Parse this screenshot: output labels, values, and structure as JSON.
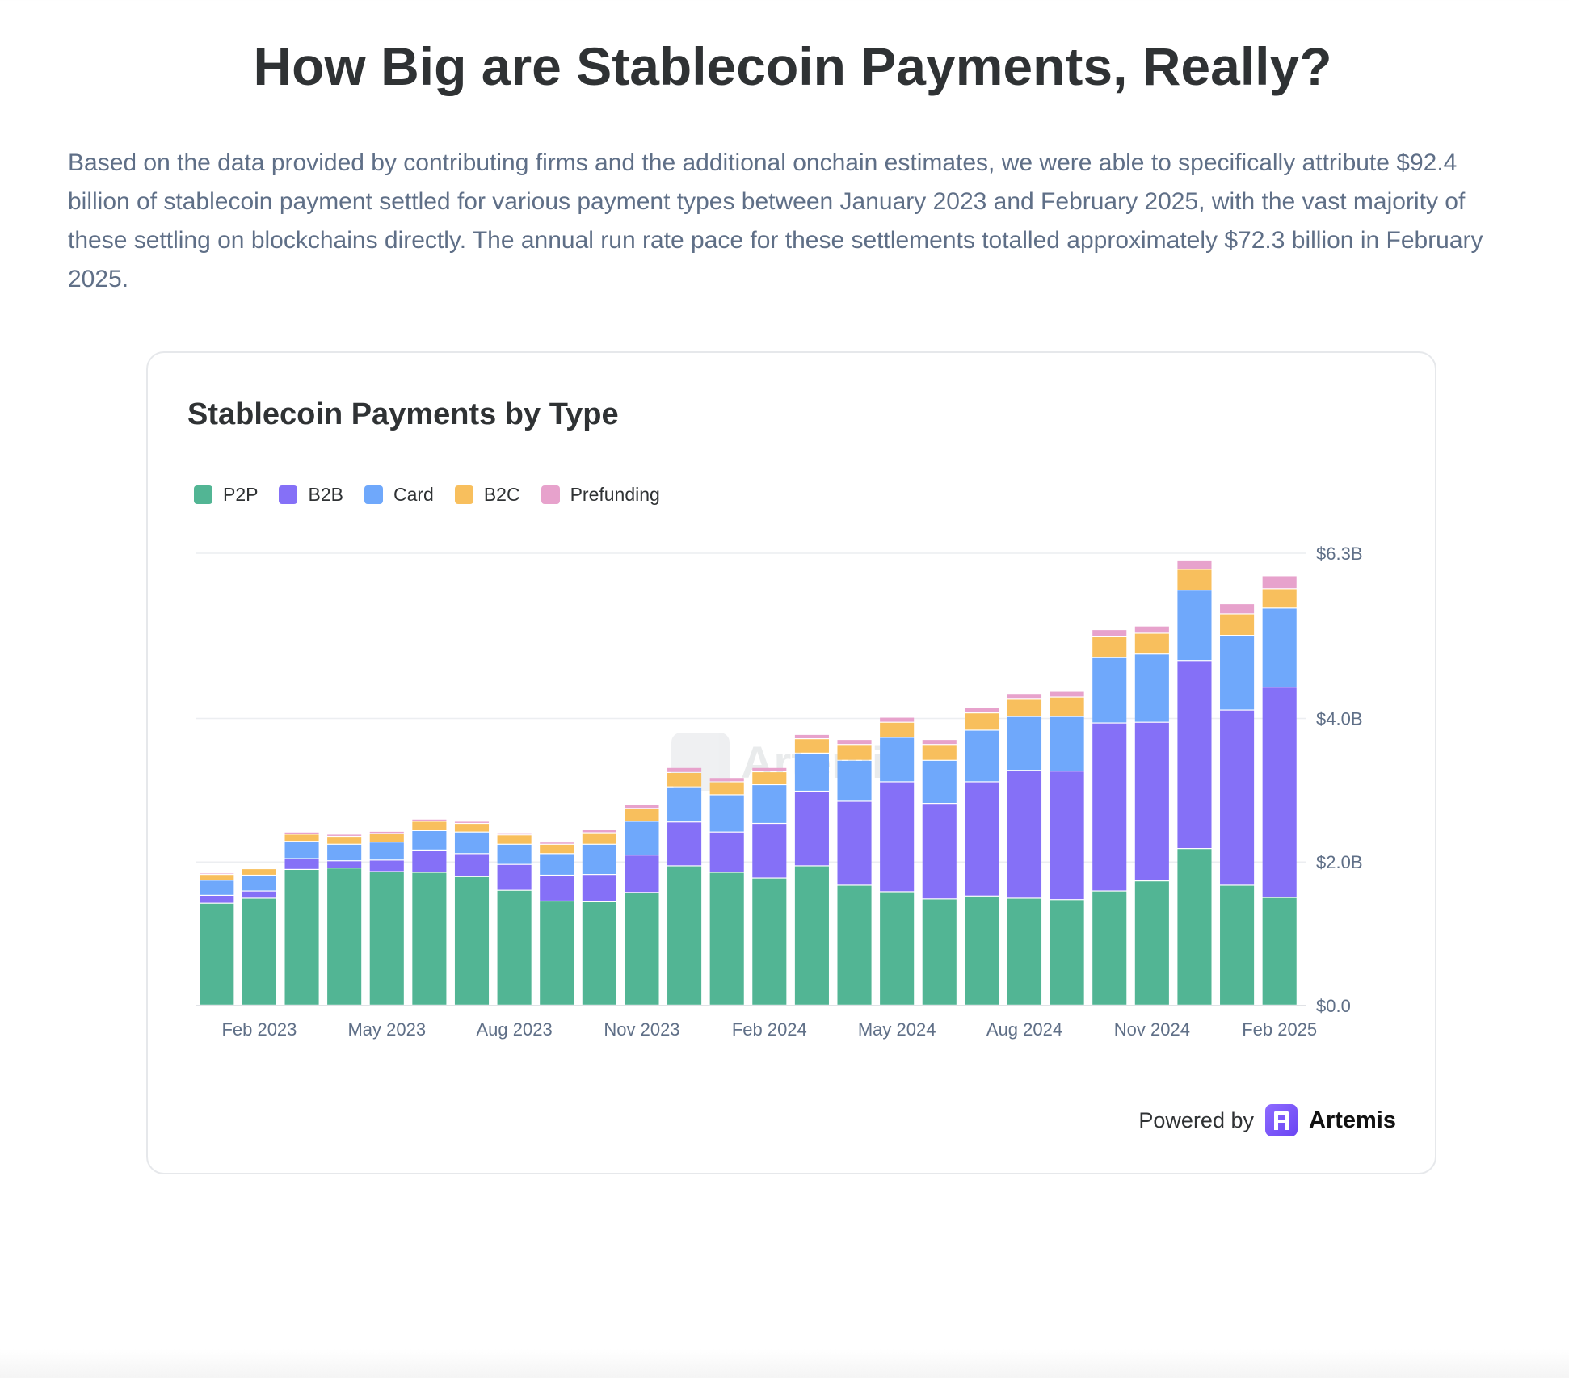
{
  "page": {
    "title": "How Big are Stablecoin Payments, Really?",
    "intro": "Based on the data provided by contributing firms and the additional onchain estimates, we were able to specifically attribute $92.4 billion of stablecoin payment settled for various payment types between January 2023 and February 2025, with the vast majority of these settling on blockchains directly. The annual run rate pace for these settlements totalled approximately $72.3 billion in February 2025."
  },
  "card": {
    "watermark": "Artemis",
    "powered_by": "Powered by",
    "brand": "Artemis"
  },
  "chart_data": {
    "type": "bar",
    "stacked": true,
    "title": "Stablecoin Payments by Type",
    "legend_position": "top-left",
    "grid": true,
    "yaxis_position": "right",
    "ylim": [
      0,
      6.3
    ],
    "y_ticks": [
      0,
      2.0,
      4.0,
      6.3
    ],
    "y_tick_labels": [
      "$0.0",
      "$2.0B",
      "$4.0B",
      "$6.3B"
    ],
    "x_tick_labels": [
      "Feb 2023",
      "May 2023",
      "Aug 2023",
      "Nov 2023",
      "Feb 2024",
      "May 2024",
      "Aug 2024",
      "Nov 2024",
      "Feb 2025"
    ],
    "x_tick_indices": [
      1,
      4,
      7,
      10,
      13,
      16,
      19,
      22,
      25
    ],
    "categories": [
      "Jan 2023",
      "Feb 2023",
      "Mar 2023",
      "Apr 2023",
      "May 2023",
      "Jun 2023",
      "Jul 2023",
      "Aug 2023",
      "Sep 2023",
      "Oct 2023",
      "Nov 2023",
      "Dec 2023",
      "Jan 2024",
      "Feb 2024",
      "Mar 2024",
      "Apr 2024",
      "May 2024",
      "Jun 2024",
      "Jul 2024",
      "Aug 2024",
      "Sep 2024",
      "Oct 2024",
      "Nov 2024",
      "Dec 2024",
      "Jan 2025",
      "Feb 2025"
    ],
    "series": [
      {
        "name": "P2P",
        "color": "#52b594",
        "values": [
          1.42,
          1.49,
          1.89,
          1.91,
          1.86,
          1.85,
          1.79,
          1.6,
          1.45,
          1.44,
          1.57,
          1.94,
          1.85,
          1.77,
          1.94,
          1.67,
          1.58,
          1.48,
          1.52,
          1.49,
          1.47,
          1.59,
          1.73,
          2.18,
          1.67,
          1.5
        ]
      },
      {
        "name": "B2B",
        "color": "#8570f7",
        "values": [
          0.11,
          0.1,
          0.15,
          0.1,
          0.16,
          0.31,
          0.32,
          0.36,
          0.36,
          0.38,
          0.52,
          0.61,
          0.56,
          0.76,
          1.04,
          1.17,
          1.53,
          1.33,
          1.59,
          1.78,
          1.79,
          2.34,
          2.21,
          2.62,
          2.44,
          2.93
        ]
      },
      {
        "name": "Card",
        "color": "#6fa8fb",
        "values": [
          0.21,
          0.22,
          0.24,
          0.23,
          0.25,
          0.27,
          0.3,
          0.28,
          0.3,
          0.42,
          0.47,
          0.49,
          0.52,
          0.54,
          0.53,
          0.57,
          0.62,
          0.6,
          0.72,
          0.75,
          0.76,
          0.91,
          0.95,
          0.98,
          1.04,
          1.1
        ]
      },
      {
        "name": "B2C",
        "color": "#f8bf5d",
        "values": [
          0.08,
          0.09,
          0.1,
          0.11,
          0.12,
          0.13,
          0.12,
          0.13,
          0.13,
          0.16,
          0.18,
          0.2,
          0.18,
          0.18,
          0.2,
          0.22,
          0.21,
          0.22,
          0.24,
          0.25,
          0.27,
          0.29,
          0.29,
          0.29,
          0.3,
          0.27
        ]
      },
      {
        "name": "Prefunding",
        "color": "#e7a2cc",
        "values": [
          0.02,
          0.02,
          0.03,
          0.03,
          0.03,
          0.03,
          0.03,
          0.03,
          0.03,
          0.05,
          0.06,
          0.07,
          0.06,
          0.06,
          0.06,
          0.07,
          0.07,
          0.07,
          0.07,
          0.07,
          0.08,
          0.1,
          0.1,
          0.13,
          0.14,
          0.18
        ]
      }
    ]
  }
}
